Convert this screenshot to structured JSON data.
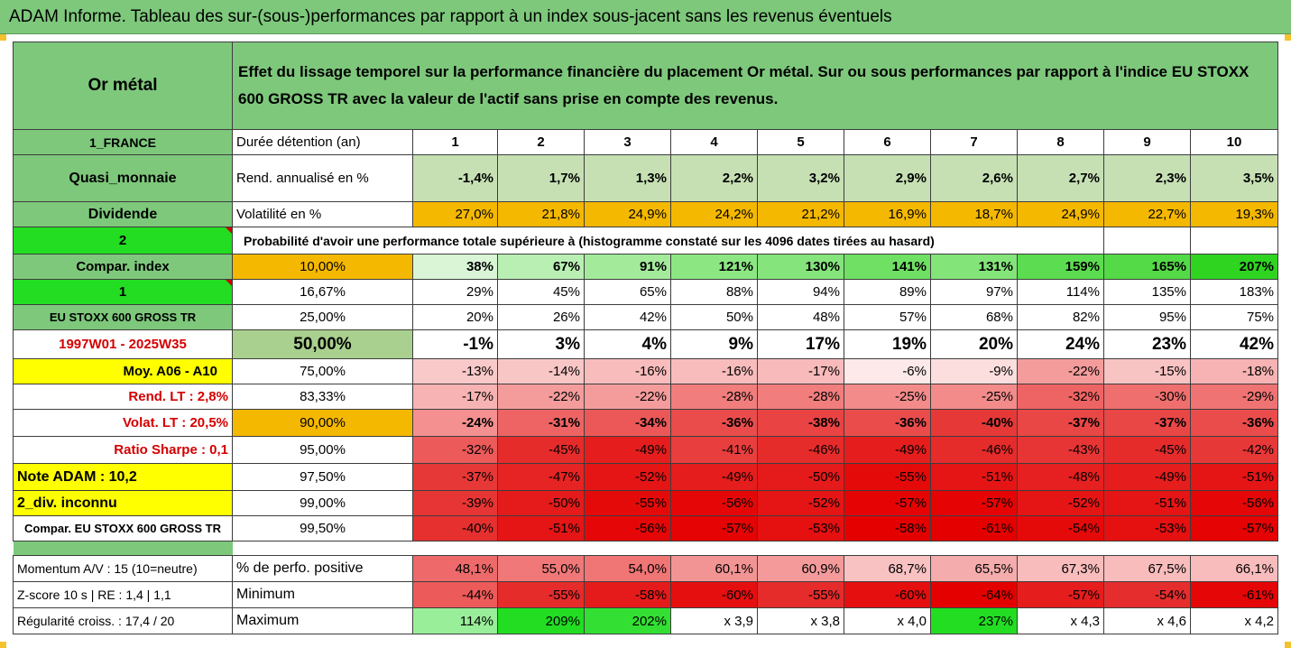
{
  "title": "ADAM Informe. Tableau des sur-(sous-)performances par rapport à un index sous-jacent sans les revenus éventuels",
  "asset_name": "Or métal",
  "description": "Effet du lissage temporel sur la performance financière du placement Or métal. Sur ou sous performances par rapport à l'indice EU STOXX 600 GROSS TR avec la valeur de l'actif sans prise en compte des revenus.",
  "rows": {
    "country": "1_FRANCE",
    "holding_label": "Durée détention (an)",
    "years": [
      "1",
      "2",
      "3",
      "4",
      "5",
      "6",
      "7",
      "8",
      "9",
      "10"
    ],
    "category": "Quasi_monnaie",
    "rend_label": "Rend. annualisé en %",
    "rend_values": [
      "-1,4%",
      "1,7%",
      "1,3%",
      "2,2%",
      "3,2%",
      "2,9%",
      "2,6%",
      "2,7%",
      "2,3%",
      "3,5%"
    ],
    "dividend": "Dividende",
    "vol_label": "Volatilité en %",
    "vol_values": [
      "27,0%",
      "21,8%",
      "24,9%",
      "24,2%",
      "21,2%",
      "16,9%",
      "18,7%",
      "24,9%",
      "22,7%",
      "19,3%"
    ],
    "row2_left": "2",
    "prob_text": "Probabilité d'avoir une performance totale supérieure à (histogramme constaté sur les 4096 dates tirées au hasard)"
  },
  "left_labels": [
    "Compar. index",
    "1",
    "EU STOXX 600 GROSS TR",
    "1997W01 - 2025W35",
    "Moy. A06 - A10",
    "Rend. LT :   2,8%",
    "Volat. LT :   20,5%",
    "Ratio Sharpe :   0,1",
    "Note ADAM : 10,2",
    "2_div. inconnu",
    "Compar. EU STOXX 600 GROSS TR"
  ],
  "percentiles": [
    "10,00%",
    "16,67%",
    "25,00%",
    "50,00%",
    "75,00%",
    "83,33%",
    "90,00%",
    "95,00%",
    "97,50%",
    "99,00%",
    "99,50%"
  ],
  "matrix": [
    [
      "38%",
      "67%",
      "91%",
      "121%",
      "130%",
      "141%",
      "131%",
      "159%",
      "165%",
      "207%"
    ],
    [
      "29%",
      "45%",
      "65%",
      "88%",
      "94%",
      "89%",
      "97%",
      "114%",
      "135%",
      "183%"
    ],
    [
      "20%",
      "26%",
      "42%",
      "50%",
      "48%",
      "57%",
      "68%",
      "82%",
      "95%",
      "75%"
    ],
    [
      "-1%",
      "3%",
      "4%",
      "9%",
      "17%",
      "19%",
      "20%",
      "24%",
      "23%",
      "42%"
    ],
    [
      "-13%",
      "-14%",
      "-16%",
      "-16%",
      "-17%",
      "-6%",
      "-9%",
      "-22%",
      "-15%",
      "-18%"
    ],
    [
      "-17%",
      "-22%",
      "-22%",
      "-28%",
      "-28%",
      "-25%",
      "-25%",
      "-32%",
      "-30%",
      "-29%"
    ],
    [
      "-24%",
      "-31%",
      "-34%",
      "-36%",
      "-38%",
      "-36%",
      "-40%",
      "-37%",
      "-37%",
      "-36%"
    ],
    [
      "-32%",
      "-45%",
      "-49%",
      "-41%",
      "-46%",
      "-49%",
      "-46%",
      "-43%",
      "-45%",
      "-42%"
    ],
    [
      "-37%",
      "-47%",
      "-52%",
      "-49%",
      "-50%",
      "-55%",
      "-51%",
      "-48%",
      "-49%",
      "-51%"
    ],
    [
      "-39%",
      "-50%",
      "-55%",
      "-56%",
      "-52%",
      "-57%",
      "-57%",
      "-52%",
      "-51%",
      "-56%"
    ],
    [
      "-40%",
      "-51%",
      "-56%",
      "-57%",
      "-53%",
      "-58%",
      "-61%",
      "-54%",
      "-53%",
      "-57%"
    ]
  ],
  "matrix_colors": [
    [
      "#d9f5d6",
      "#b9efb3",
      "#a3eb9b",
      "#8ce783",
      "#85e47b",
      "#6fe064",
      "#83e479",
      "#5cdc50",
      "#54da47",
      "#2fd421"
    ],
    [
      "#ffffff",
      "#ffffff",
      "#ffffff",
      "#ffffff",
      "#ffffff",
      "#ffffff",
      "#ffffff",
      "#ffffff",
      "#ffffff",
      "#ffffff"
    ],
    [
      "#ffffff",
      "#ffffff",
      "#ffffff",
      "#ffffff",
      "#ffffff",
      "#ffffff",
      "#ffffff",
      "#ffffff",
      "#ffffff",
      "#ffffff"
    ],
    [
      "#ffffff",
      "#ffffff",
      "#ffffff",
      "#ffffff",
      "#ffffff",
      "#ffffff",
      "#ffffff",
      "#ffffff",
      "#ffffff",
      "#ffffff"
    ],
    [
      "#f9c9c9",
      "#f9c6c6",
      "#f8bcbc",
      "#f8bcbc",
      "#f8baba",
      "#fde9e9",
      "#fcdede",
      "#f49c9c",
      "#f8c3c3",
      "#f7b3b3"
    ],
    [
      "#f7b3b3",
      "#f49c9c",
      "#f49c9c",
      "#f17d7d",
      "#f17d7d",
      "#f38b8b",
      "#f38b8b",
      "#ee6464",
      "#ef6f6f",
      "#f07373"
    ],
    [
      "#f49090",
      "#ee6464",
      "#ec5858",
      "#ea4c4c",
      "#e94343",
      "#ea4c4c",
      "#e73838",
      "#e94646",
      "#e94646",
      "#ea4c4c"
    ],
    [
      "#ec5a5a",
      "#e62b2b",
      "#e51d1d",
      "#e83e3e",
      "#e62b2b",
      "#e51d1d",
      "#e62b2b",
      "#e73535",
      "#e62b2b",
      "#e73838"
    ],
    [
      "#e73838",
      "#e62424",
      "#e51515",
      "#e51d1d",
      "#e51a1a",
      "#e50a0a",
      "#e51515",
      "#e62020",
      "#e51d1d",
      "#e51515"
    ],
    [
      "#e73535",
      "#e51a1a",
      "#e50a0a",
      "#e50707",
      "#e51515",
      "#e50303",
      "#e50303",
      "#e51515",
      "#e51515",
      "#e50707"
    ],
    [
      "#e63030",
      "#e51515",
      "#e50707",
      "#e50303",
      "#e51010",
      "#e50000",
      "#e50000",
      "#e50a0a",
      "#e51010",
      "#e50303"
    ]
  ],
  "percentile_colors": [
    "#f5b800",
    "#ffffff",
    "#ffffff",
    "#a9d08e",
    "#ffffff",
    "#ffffff",
    "#f5b800",
    "#ffffff",
    "#ffffff",
    "#ffffff",
    "#ffffff"
  ],
  "left_colors": [
    "#7ec87c",
    "#22dd22",
    "#7ec87c",
    "#ffffff",
    "#ffff00",
    "#ffffff",
    "#ffffff",
    "#ffffff",
    "#ffff00",
    "#ffff00",
    "#ffffff"
  ],
  "bottom": {
    "momentum_label": "Momentum A/V : 15 (10=neutre)",
    "zscore_label": "Z-score 10 s  | RE : 1,4 | 1,1",
    "regularite_label": "Régularité croiss. : 17,4 / 20",
    "pos_label": "% de perfo. positive",
    "min_label": "Minimum",
    "max_label": "Maximum",
    "pos_values": [
      "48,1%",
      "55,0%",
      "54,0%",
      "60,1%",
      "60,9%",
      "68,7%",
      "65,5%",
      "67,3%",
      "67,5%",
      "66,1%"
    ],
    "min_values": [
      "-44%",
      "-55%",
      "-58%",
      "-60%",
      "-55%",
      "-60%",
      "-64%",
      "-57%",
      "-54%",
      "-61%"
    ],
    "max_values": [
      "114%",
      "209%",
      "202%",
      "x 3,9",
      "x 3,8",
      "x 4,0",
      "237%",
      "x 4,3",
      "x 4,6",
      "x 4,2"
    ],
    "pos_colors": [
      "#ee6a6a",
      "#f07878",
      "#f07575",
      "#f39494",
      "#f49a9a",
      "#f8c2c2",
      "#f5acac",
      "#f8bcbc",
      "#f8bcbc",
      "#f8bcbc"
    ],
    "min_colors": [
      "#ec5a5a",
      "#e62b2b",
      "#e51a1a",
      "#e50f0f",
      "#e62b2b",
      "#e50f0f",
      "#e50000",
      "#e51d1d",
      "#e62d2d",
      "#e50707"
    ],
    "max_colors": [
      "#99ee99",
      "#22dd22",
      "#33df33",
      "#ffffff",
      "#ffffff",
      "#ffffff",
      "#22dd22",
      "#ffffff",
      "#ffffff",
      "#ffffff"
    ]
  }
}
